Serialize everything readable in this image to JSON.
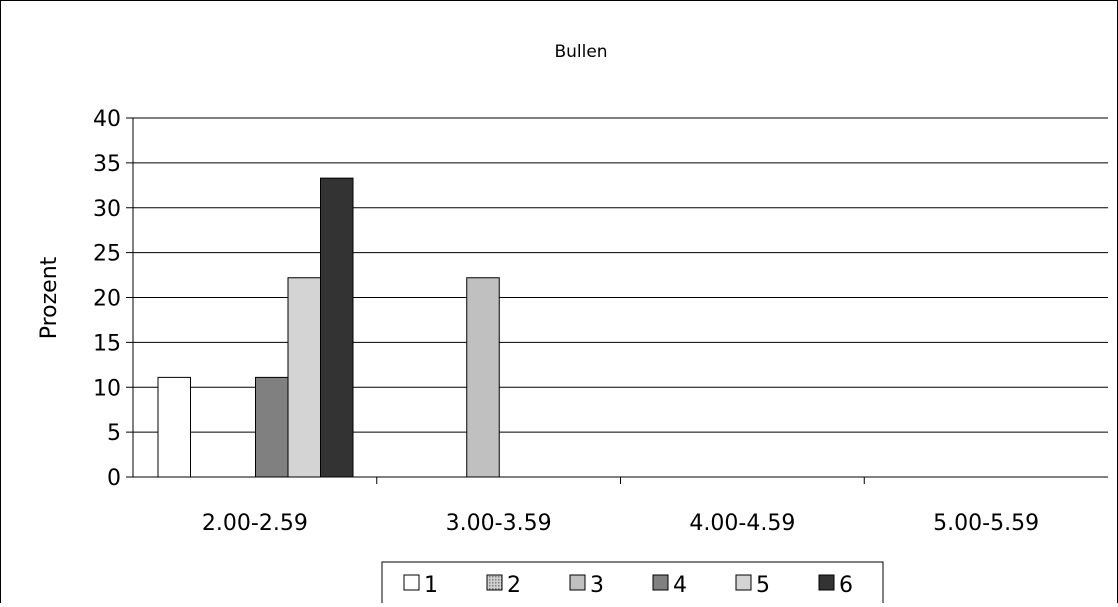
{
  "chart_data": {
    "type": "bar",
    "title": "Bullen",
    "xlabel": "",
    "ylabel": "Prozent",
    "ylim": [
      0,
      40
    ],
    "yticks": [
      0,
      5,
      10,
      15,
      20,
      25,
      30,
      35,
      40
    ],
    "grid": true,
    "legend_position": "bottom",
    "categories": [
      "2.00-2.59",
      "3.00-3.59",
      "4.00-4.59",
      "5.00-5.59"
    ],
    "series": [
      {
        "name": "1",
        "color": "#ffffff",
        "pattern": "none",
        "values": [
          11.1,
          0,
          0,
          0
        ]
      },
      {
        "name": "2",
        "color": "#b0b0b0",
        "pattern": "dots",
        "values": [
          0,
          0,
          0,
          0
        ]
      },
      {
        "name": "3",
        "color": "#c0c0c0",
        "pattern": "none",
        "values": [
          0,
          22.2,
          0,
          0
        ]
      },
      {
        "name": "4",
        "color": "#808080",
        "pattern": "none",
        "values": [
          11.1,
          0,
          0,
          0
        ]
      },
      {
        "name": "5",
        "color": "#d4d4d4",
        "pattern": "none",
        "values": [
          22.2,
          0,
          0,
          0
        ]
      },
      {
        "name": "6",
        "color": "#333333",
        "pattern": "none",
        "values": [
          33.3,
          0,
          0,
          0
        ]
      }
    ]
  }
}
